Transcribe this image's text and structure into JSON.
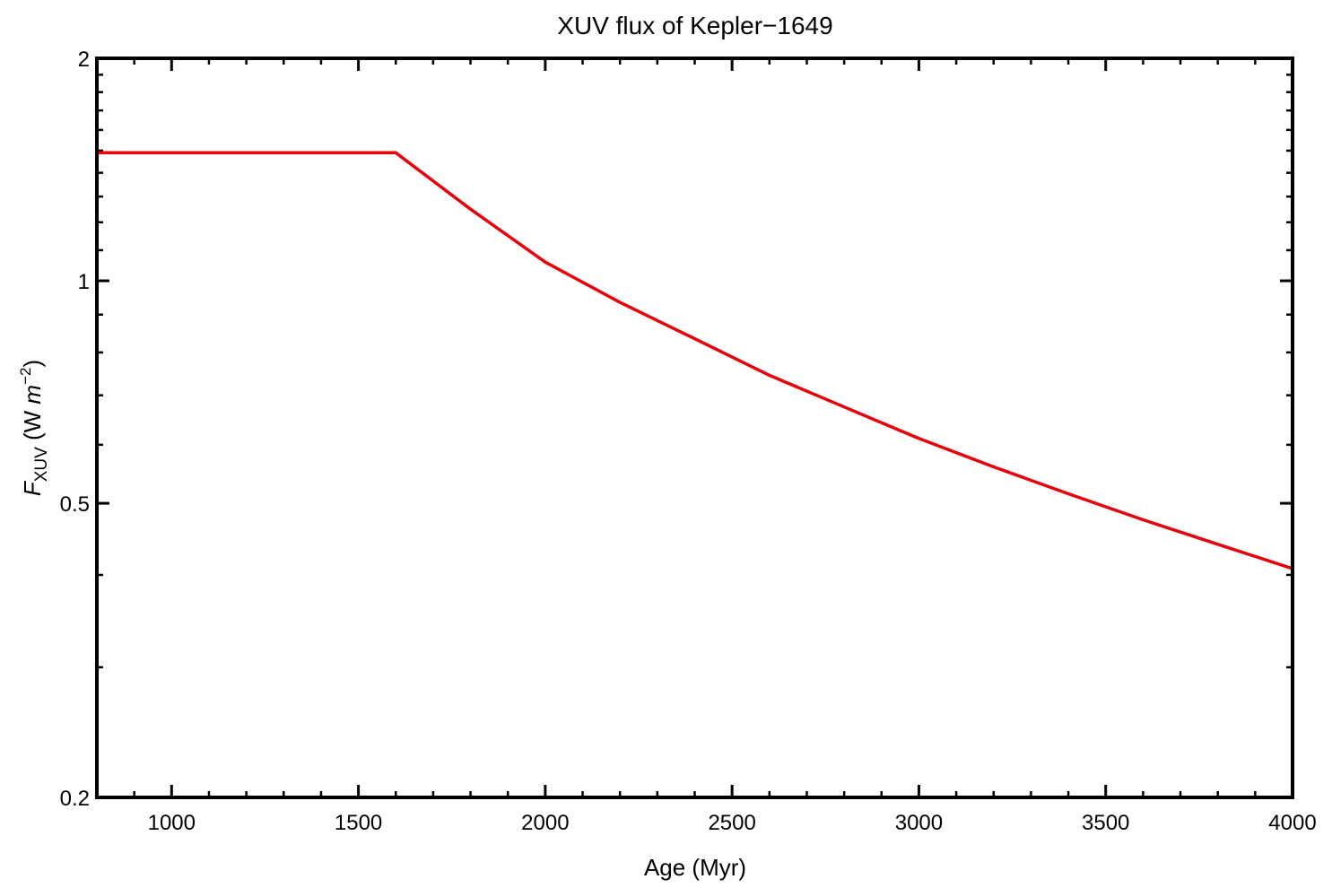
{
  "chart_data": {
    "type": "line",
    "title": "XUV flux of Kepler−1649",
    "xlabel": "Age (Myr)",
    "ylabel": {
      "symbol": "F",
      "subscript": "XUV",
      "unit_prefix": " (W ",
      "unit_var": "m",
      "unit_exp": "−2",
      "unit_suffix": ")"
    },
    "xlim": [
      800,
      4000
    ],
    "ylim": [
      0.2,
      2
    ],
    "y_scale": "log",
    "grid": false,
    "x_ticks": [
      {
        "value": 1000,
        "label": "1000"
      },
      {
        "value": 1500,
        "label": "1500"
      },
      {
        "value": 2000,
        "label": "2000"
      },
      {
        "value": 2500,
        "label": "2500"
      },
      {
        "value": 3000,
        "label": "3000"
      },
      {
        "value": 3500,
        "label": "3500"
      },
      {
        "value": 4000,
        "label": "4000"
      }
    ],
    "y_ticks": [
      {
        "value": 0.2,
        "label": "0.2"
      },
      {
        "value": 0.5,
        "label": "0.5"
      },
      {
        "value": 1,
        "label": "1"
      },
      {
        "value": 2,
        "label": "2"
      }
    ],
    "series": [
      {
        "color": "#e8000b",
        "x": [
          800,
          1000,
          1200,
          1400,
          1600,
          1800,
          2000,
          2200,
          2400,
          2600,
          2800,
          3000,
          3200,
          3400,
          3600,
          3800,
          4000
        ],
        "y": [
          1.49,
          1.49,
          1.49,
          1.49,
          1.49,
          1.25,
          1.06,
          0.935,
          0.835,
          0.745,
          0.675,
          0.612,
          0.56,
          0.515,
          0.475,
          0.44,
          0.408
        ]
      }
    ]
  }
}
